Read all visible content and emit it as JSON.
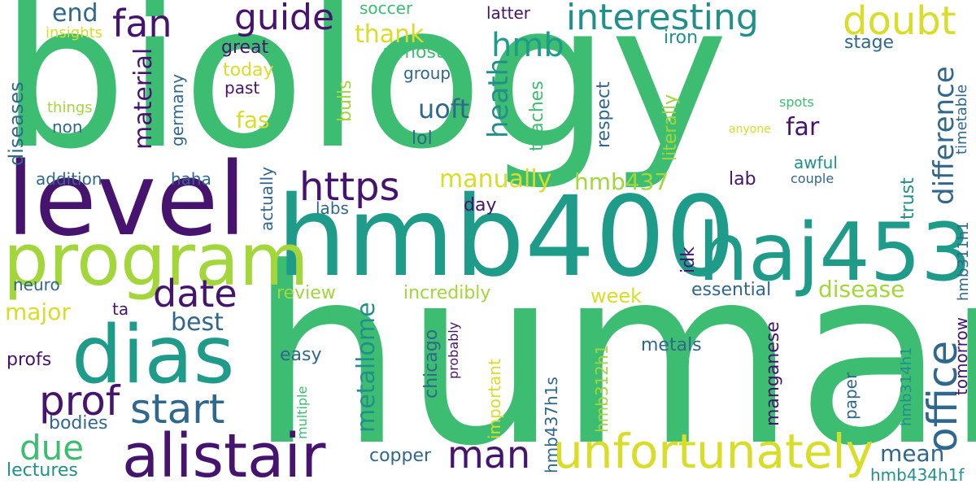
{
  "palette": {
    "purple": "#46146e",
    "indigo": "#3f3c8a",
    "blue": "#30678d",
    "teal": "#218f8c",
    "green": "#3ab973",
    "lime": "#a3d63a",
    "yellow": "#d8dd27"
  },
  "words": [
    {
      "text": "biology",
      "color": "#3dbd71"
    },
    {
      "text": "human",
      "color": "#3dbd71"
    },
    {
      "text": "hmb400",
      "color": "#1f9c89"
    },
    {
      "text": "level",
      "color": "#46146e"
    },
    {
      "text": "program",
      "color": "#a3d63a"
    },
    {
      "text": "haj453",
      "color": "#1f9c89"
    },
    {
      "text": "dias",
      "color": "#1f9c89"
    },
    {
      "text": "alistair",
      "color": "#46146e"
    },
    {
      "text": "unfortunately",
      "color": "#d8dd27"
    },
    {
      "text": "office",
      "color": "#30678d"
    },
    {
      "text": "interesting",
      "color": "#218f8c"
    },
    {
      "text": "guide",
      "color": "#46146e"
    },
    {
      "text": "fan",
      "color": "#46146e"
    },
    {
      "text": "doubt",
      "color": "#d8dd27"
    },
    {
      "text": "https",
      "color": "#46146e"
    },
    {
      "text": "prof",
      "color": "#46146e"
    },
    {
      "text": "start",
      "color": "#30678d"
    },
    {
      "text": "date",
      "color": "#46146e"
    },
    {
      "text": "man",
      "color": "#46146e"
    },
    {
      "text": "due",
      "color": "#3dbd71"
    },
    {
      "text": "hmb",
      "color": "#1f9c89"
    },
    {
      "text": "difference",
      "color": "#30678d"
    },
    {
      "text": "end",
      "color": "#30678d"
    },
    {
      "text": "thank",
      "color": "#d8dd27"
    },
    {
      "text": "heath",
      "color": "#218f8c"
    },
    {
      "text": "uoft",
      "color": "#30678d"
    },
    {
      "text": "material",
      "color": "#46146e"
    },
    {
      "text": "manually",
      "color": "#d8dd27"
    },
    {
      "text": "hmb437",
      "color": "#a3d63a"
    },
    {
      "text": "far",
      "color": "#46146e"
    },
    {
      "text": "disease",
      "color": "#a3d63a"
    },
    {
      "text": "best",
      "color": "#30678d"
    },
    {
      "text": "major",
      "color": "#d8dd27"
    },
    {
      "text": "metallome",
      "color": "#218f8c"
    },
    {
      "text": "mean",
      "color": "#30678d"
    },
    {
      "text": "fas",
      "color": "#d8dd27"
    },
    {
      "text": "soccer",
      "color": "#3dbd71"
    },
    {
      "text": "latter",
      "color": "#46146e"
    },
    {
      "text": "iron",
      "color": "#218f8c"
    },
    {
      "text": "stage",
      "color": "#30678d"
    },
    {
      "text": "insights",
      "color": "#d8dd27"
    },
    {
      "text": "great",
      "color": "#46146e"
    },
    {
      "text": "almost",
      "color": "#3dbd71"
    },
    {
      "text": "today",
      "color": "#d8dd27"
    },
    {
      "text": "group",
      "color": "#30678d"
    },
    {
      "text": "past",
      "color": "#46146e"
    },
    {
      "text": "diseases",
      "color": "#30678d"
    },
    {
      "text": "germany",
      "color": "#30678d"
    },
    {
      "text": "things",
      "color": "#a3d63a"
    },
    {
      "text": "non",
      "color": "#30678d"
    },
    {
      "text": "bulls",
      "color": "#a3d63a"
    },
    {
      "text": "lol",
      "color": "#30678d"
    },
    {
      "text": "teaches",
      "color": "#3dbd71"
    },
    {
      "text": "respect",
      "color": "#30678d"
    },
    {
      "text": "literally",
      "color": "#a3d63a"
    },
    {
      "text": "spots",
      "color": "#3dbd71"
    },
    {
      "text": "timetable",
      "color": "#30678d"
    },
    {
      "text": "anyone",
      "color": "#d8dd27"
    },
    {
      "text": "awful",
      "color": "#218f8c"
    },
    {
      "text": "addition",
      "color": "#30678d"
    },
    {
      "text": "haha",
      "color": "#30678d"
    },
    {
      "text": "actually",
      "color": "#30678d"
    },
    {
      "text": "lab",
      "color": "#46146e"
    },
    {
      "text": "couple",
      "color": "#30678d"
    },
    {
      "text": "trust",
      "color": "#218f8c"
    },
    {
      "text": "day",
      "color": "#46146e"
    },
    {
      "text": "labs",
      "color": "#30678d"
    },
    {
      "text": "hmb311h1",
      "color": "#30678d"
    },
    {
      "text": "idk",
      "color": "#46146e"
    },
    {
      "text": "neuro",
      "color": "#30678d"
    },
    {
      "text": "review",
      "color": "#a3d63a"
    },
    {
      "text": "incredibly",
      "color": "#a3d63a"
    },
    {
      "text": "essential",
      "color": "#30678d"
    },
    {
      "text": "ta",
      "color": "#46146e"
    },
    {
      "text": "week",
      "color": "#d8dd27"
    },
    {
      "text": "chicago",
      "color": "#30678d"
    },
    {
      "text": "probably",
      "color": "#46146e"
    },
    {
      "text": "manganese",
      "color": "#46146e"
    },
    {
      "text": "tomorrow",
      "color": "#46146e"
    },
    {
      "text": "profs",
      "color": "#46146e"
    },
    {
      "text": "easy",
      "color": "#30678d"
    },
    {
      "text": "metals",
      "color": "#30678d"
    },
    {
      "text": "multiple",
      "color": "#3dbd71"
    },
    {
      "text": "important",
      "color": "#d8dd27"
    },
    {
      "text": "hmb312h1",
      "color": "#a3d63a"
    },
    {
      "text": "hmb437h1s",
      "color": "#30678d"
    },
    {
      "text": "paper",
      "color": "#30678d"
    },
    {
      "text": "hmb314h1",
      "color": "#218f8c"
    },
    {
      "text": "bodies",
      "color": "#30678d"
    },
    {
      "text": "copper",
      "color": "#30678d"
    },
    {
      "text": "lectures",
      "color": "#218f8c"
    },
    {
      "text": "hmb434h1f",
      "color": "#218f8c"
    }
  ]
}
